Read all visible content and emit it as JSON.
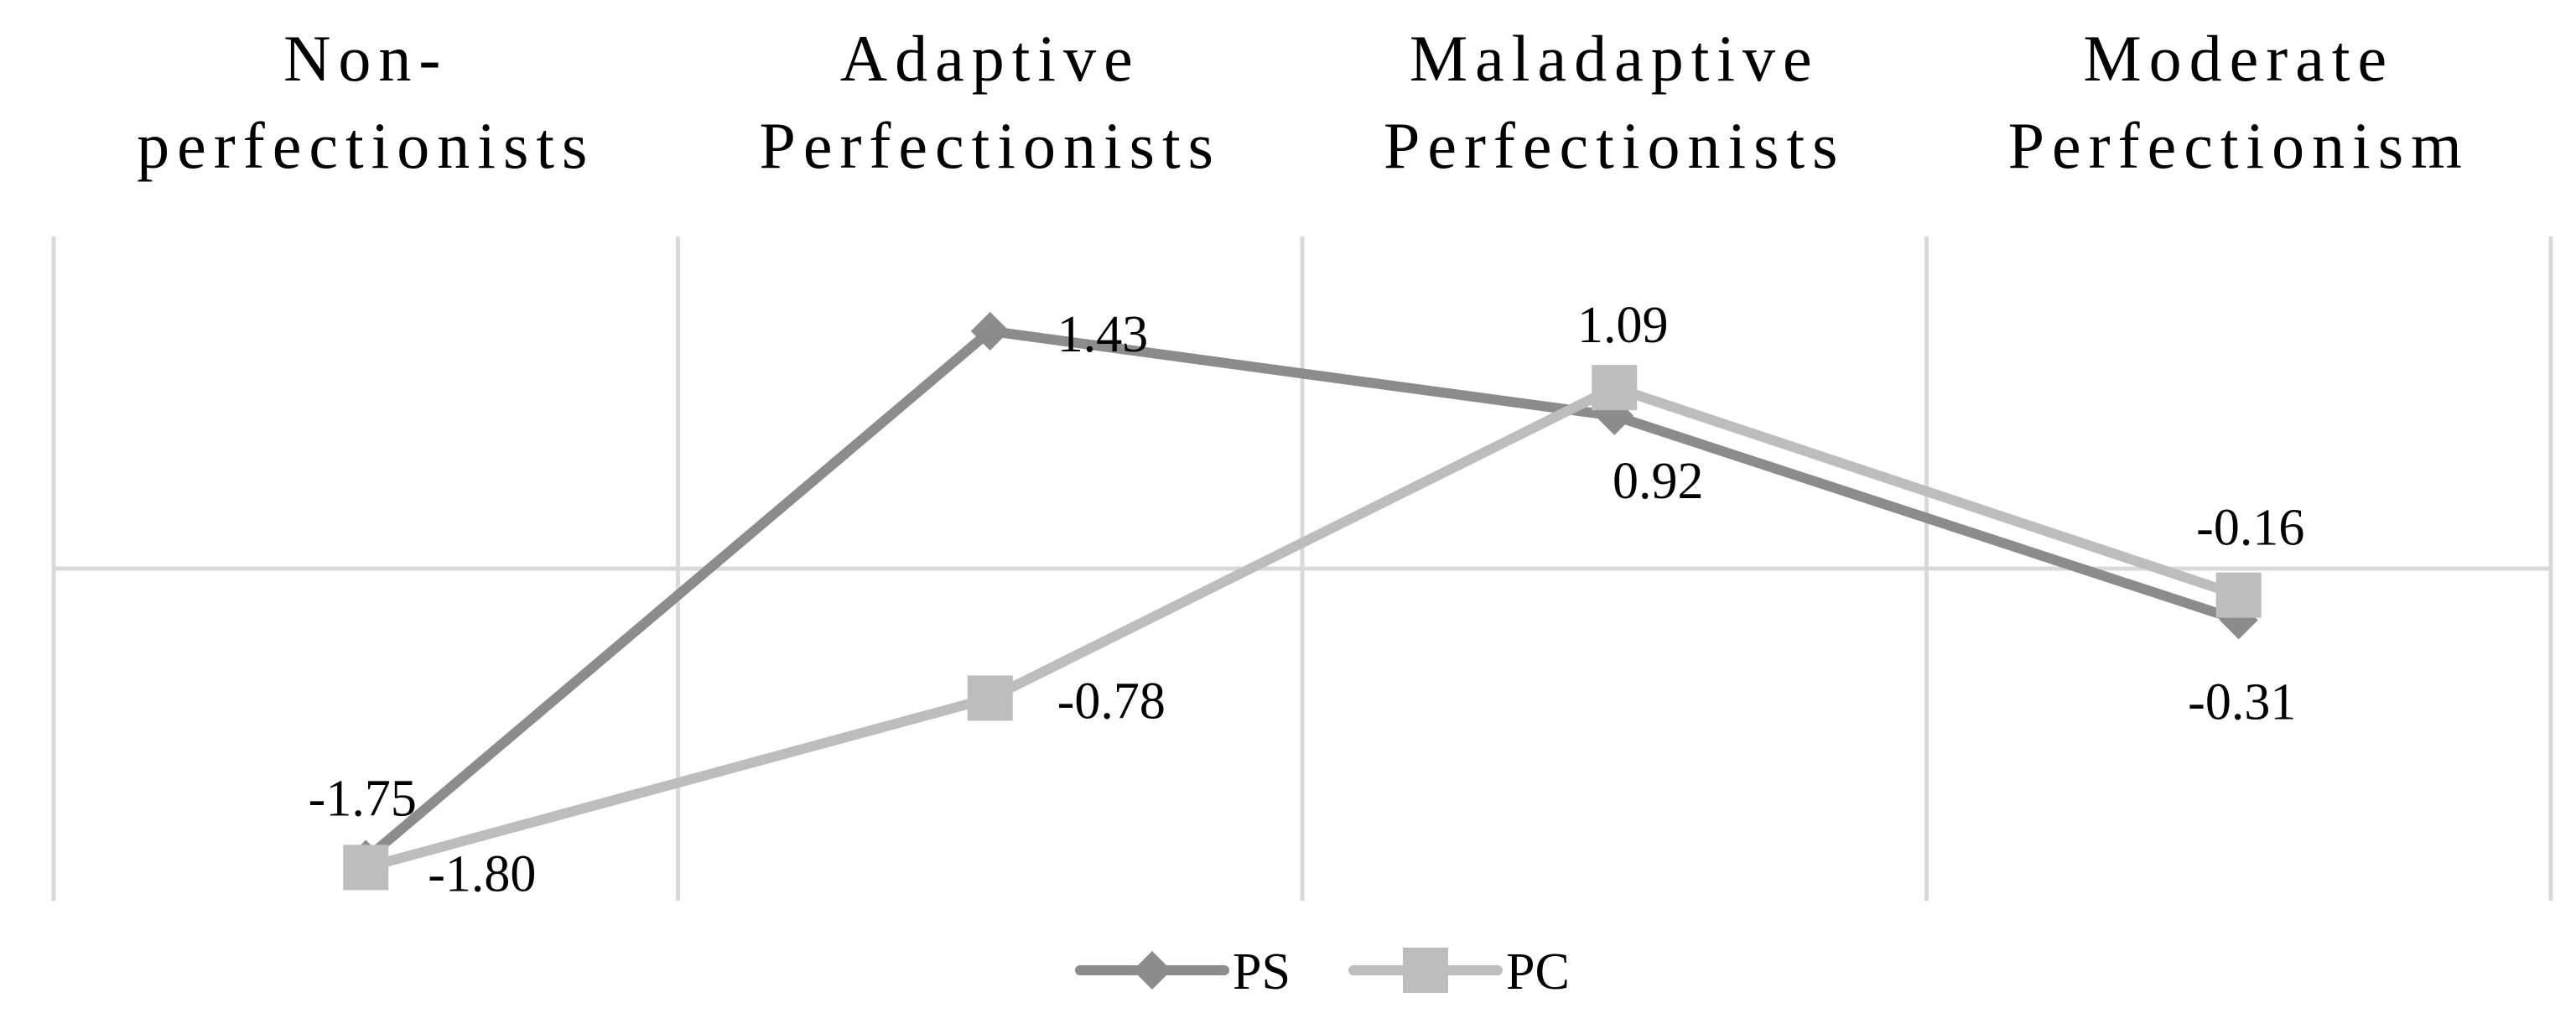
{
  "chart_data": {
    "type": "line",
    "categories": [
      "Non-perfectionists",
      "Adaptive Perfectionists",
      "Maladaptive Perfectionists",
      "Moderate Perfectionism"
    ],
    "category_label_lines": [
      [
        "Non-",
        "perfectionists"
      ],
      [
        "Adaptive",
        "Perfectionists"
      ],
      [
        "Maladaptive",
        "Perfectionists"
      ],
      [
        "Moderate",
        "Perfectionism"
      ]
    ],
    "series": [
      {
        "name": "PS",
        "values": [
          -1.75,
          1.43,
          0.92,
          -0.31
        ],
        "data_labels": [
          "-1.75",
          "1.43",
          "0.92",
          "-0.31"
        ],
        "color": "#8c8c8c",
        "marker": "diamond"
      },
      {
        "name": "PC",
        "values": [
          -1.8,
          -0.78,
          1.09,
          -0.16
        ],
        "data_labels": [
          "-1.80",
          "-0.78",
          "1.09",
          "-0.16"
        ],
        "color": "#bdbdbd",
        "marker": "square"
      }
    ],
    "ylim": [
      -2.0,
      2.0
    ],
    "title": "",
    "xlabel": "",
    "ylabel": "",
    "grid": true,
    "axis_position": "categories-top",
    "legend_position": "bottom-center",
    "gridline_color": "#d9d9d9"
  }
}
